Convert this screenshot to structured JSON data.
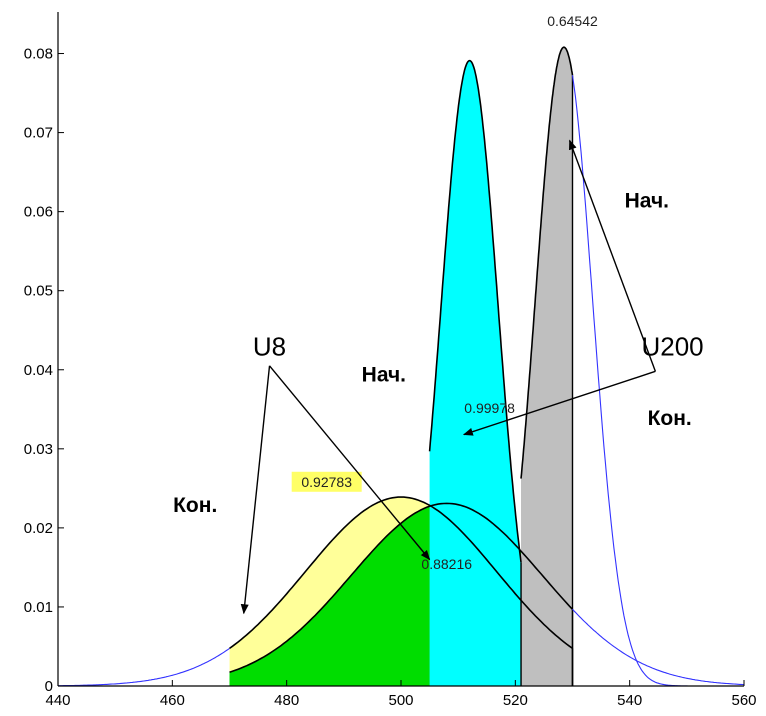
{
  "chart_data": {
    "type": "area",
    "xlim": [
      440,
      560
    ],
    "ylim": [
      0,
      0.085
    ],
    "x_ticks": [
      "440",
      "460",
      "480",
      "500",
      "520",
      "540",
      "560"
    ],
    "y_ticks": [
      "0",
      "0.01",
      "0.02",
      "0.03",
      "0.04",
      "0.05",
      "0.06",
      "0.07",
      "0.08"
    ],
    "grid": false,
    "legend": "none",
    "curves": [
      {
        "id": "u8-start",
        "mean": 500,
        "sd": 16.7,
        "peak": 0.0239,
        "fill_from": 470,
        "fill_to": 530,
        "fill": "#ffff99",
        "stroke": "#000000"
      },
      {
        "id": "u8-end",
        "mean": 508,
        "sd": 16.7,
        "peak": 0.0231,
        "fill_from": 470,
        "fill_to": 530,
        "fill": "#00dd00",
        "stroke": "#000000"
      },
      {
        "id": "u200-start",
        "mean": 528.5,
        "sd": 5.0,
        "peak": 0.0808,
        "fill_from": 521,
        "fill_to": 530,
        "fill": "#bfbfbf",
        "stroke": "#000000"
      },
      {
        "id": "u200-end",
        "mean": 512,
        "sd": 5.0,
        "peak": 0.0791,
        "fill_from": 505,
        "fill_to": 521,
        "fill": "#00ffff",
        "stroke": "#000000"
      },
      {
        "id": "u8-tail-left",
        "mean": 500,
        "sd": 16.7,
        "peak": 0.0239,
        "tail_from": 440,
        "tail_to": 470,
        "stroke": "#3333ff"
      },
      {
        "id": "u8-tail-right",
        "mean": 508,
        "sd": 16.7,
        "peak": 0.0231,
        "tail_from": 530,
        "tail_to": 560,
        "stroke": "#3333ff"
      },
      {
        "id": "u200-tail-right",
        "mean": 528.5,
        "sd": 5.0,
        "peak": 0.0808,
        "tail_from": 530,
        "tail_to": 560,
        "stroke": "#3333ff"
      }
    ],
    "value_labels": [
      {
        "id": "val-064542",
        "text": "0.64542",
        "x": 530,
        "y": 0.0835
      },
      {
        "id": "val-099978",
        "text": "0.99978",
        "x": 515.5,
        "y": 0.0345
      },
      {
        "id": "val-092783",
        "text": "0.92783",
        "x": 487,
        "y": 0.0252,
        "highlight": "#ffff66"
      },
      {
        "id": "val-088216",
        "text": "0.88216",
        "x": 508,
        "y": 0.0148
      }
    ],
    "annotations": [
      {
        "id": "u8",
        "text": "U8",
        "x": 477,
        "y": 0.0418,
        "style": "big"
      },
      {
        "id": "u200",
        "text": "U200",
        "x": 547.5,
        "y": 0.0418,
        "style": "big"
      },
      {
        "id": "u8-nach",
        "text": "Нач.",
        "x": 497,
        "y": 0.0385,
        "style": "bold"
      },
      {
        "id": "u8-kon",
        "text": "Кон.",
        "x": 464,
        "y": 0.022,
        "style": "bold"
      },
      {
        "id": "u200-nach",
        "text": "Нач.",
        "x": 543,
        "y": 0.0605,
        "style": "bold"
      },
      {
        "id": "u200-kon",
        "text": "Кон.",
        "x": 547,
        "y": 0.033,
        "style": "bold"
      }
    ],
    "arrows": [
      {
        "id": "arrow-u8-kon",
        "from": [
          477,
          0.0405
        ],
        "to": [
          472.5,
          0.0092
        ]
      },
      {
        "id": "arrow-u8-nach",
        "from": [
          477,
          0.0405
        ],
        "to": [
          505,
          0.016
        ]
      },
      {
        "id": "arrow-u200-nach",
        "from": [
          544.5,
          0.0398
        ],
        "to": [
          529.5,
          0.069
        ]
      },
      {
        "id": "arrow-u200-kon",
        "from": [
          544.5,
          0.0398
        ],
        "to": [
          511,
          0.0318
        ]
      }
    ]
  }
}
